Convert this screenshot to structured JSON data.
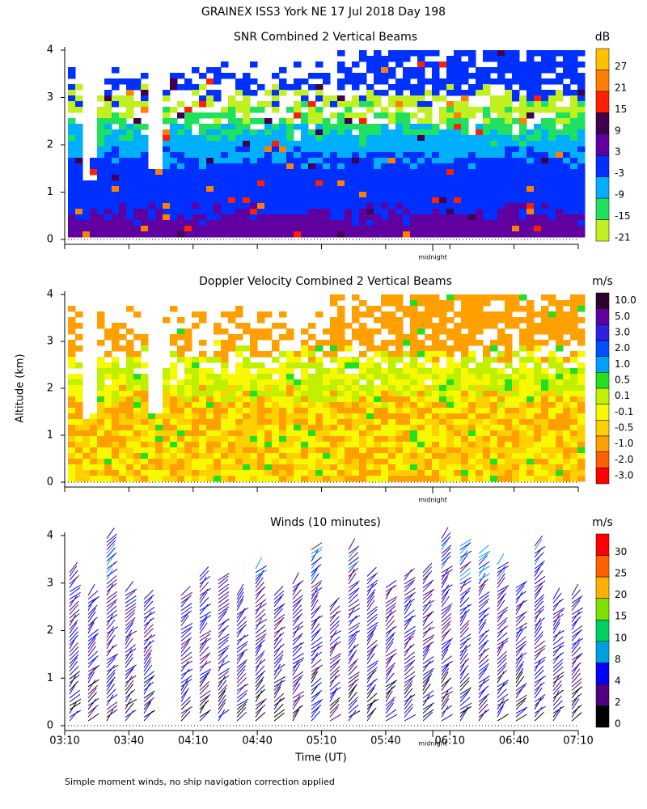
{
  "title": "GRAINEX ISS3 York NE  17 Jul 2018 Day 198",
  "footnote": "Simple moment winds, no ship navigation correction applied",
  "chart_data": [
    {
      "type": "contour",
      "title": "SNR Combined 2 Vertical Beams",
      "ylim": [
        0,
        4
      ],
      "yticks": [
        0,
        1,
        2,
        3,
        4
      ],
      "xlim": [
        190,
        430
      ],
      "annotation": {
        "value": 362,
        "label": "midnight"
      },
      "colorbar": {
        "unit": "dB",
        "levels": [
          27,
          21,
          15,
          9,
          3,
          -3,
          -9,
          -15,
          -21
        ],
        "colors": [
          "#ffc000",
          "#ff8000",
          "#ff2000",
          "#400050",
          "#6000a0",
          "#0030ff",
          "#00b0ff",
          "#20e060",
          "#c0f020"
        ]
      }
    },
    {
      "type": "contour",
      "title": "Doppler Velocity Combined 2 Vertical Beams",
      "ylabel": "Altitude (km)",
      "ylim": [
        0,
        4
      ],
      "yticks": [
        0,
        1,
        2,
        3,
        4
      ],
      "xlim": [
        190,
        430
      ],
      "annotation": {
        "value": 362,
        "label": "midnight"
      },
      "colorbar": {
        "unit": "m/s",
        "levels": [
          {
            "value": 10,
            "label": "10.0"
          },
          {
            "value": 5,
            "label": "5.0"
          },
          {
            "value": 3,
            "label": "3.0"
          },
          {
            "value": 2,
            "label": "2.0"
          },
          {
            "value": 1,
            "label": "1.0"
          },
          0.5,
          0.1,
          -0.1,
          -0.5,
          {
            "value": -1,
            "label": "-1.0"
          },
          {
            "value": -2,
            "label": "-2.0"
          },
          {
            "value": -3,
            "label": "-3.0"
          }
        ],
        "colors": [
          "#300030",
          "#6000a0",
          "#3020e0",
          "#0050ff",
          "#00a0ff",
          "#20e020",
          "#c0f000",
          "#f8f800",
          "#ffd000",
          "#ffa000",
          "#ff6000",
          "#ff0000"
        ]
      }
    },
    {
      "type": "barbs",
      "title": "Winds (10 minutes)",
      "xlabel": "Time (UT)",
      "ylim": [
        0,
        4
      ],
      "yticks": [
        0,
        1,
        2,
        3,
        4
      ],
      "xlim": [
        190,
        430
      ],
      "xticks": [
        {
          "value": 190,
          "label": "03:10"
        },
        {
          "value": 220,
          "label": "03:40"
        },
        {
          "value": 250,
          "label": "04:10"
        },
        {
          "value": 280,
          "label": "04:40"
        },
        {
          "value": 310,
          "label": "05:10"
        },
        {
          "value": 340,
          "label": "05:40"
        },
        {
          "value": 370,
          "label": "06:10"
        },
        {
          "value": 400,
          "label": "06:40"
        },
        {
          "value": 430,
          "label": "07:10"
        }
      ],
      "annotation": {
        "value": 362,
        "label": "midnight"
      },
      "colorbar": {
        "unit": "m/s",
        "levels": [
          30,
          25,
          20,
          15,
          10,
          8,
          4,
          2,
          0
        ],
        "colors": [
          "#ff0000",
          "#ff6000",
          "#ffb000",
          "#80e000",
          "#00d060",
          "#00a0e0",
          "#0000ff",
          "#500080",
          "#000000"
        ]
      }
    }
  ]
}
